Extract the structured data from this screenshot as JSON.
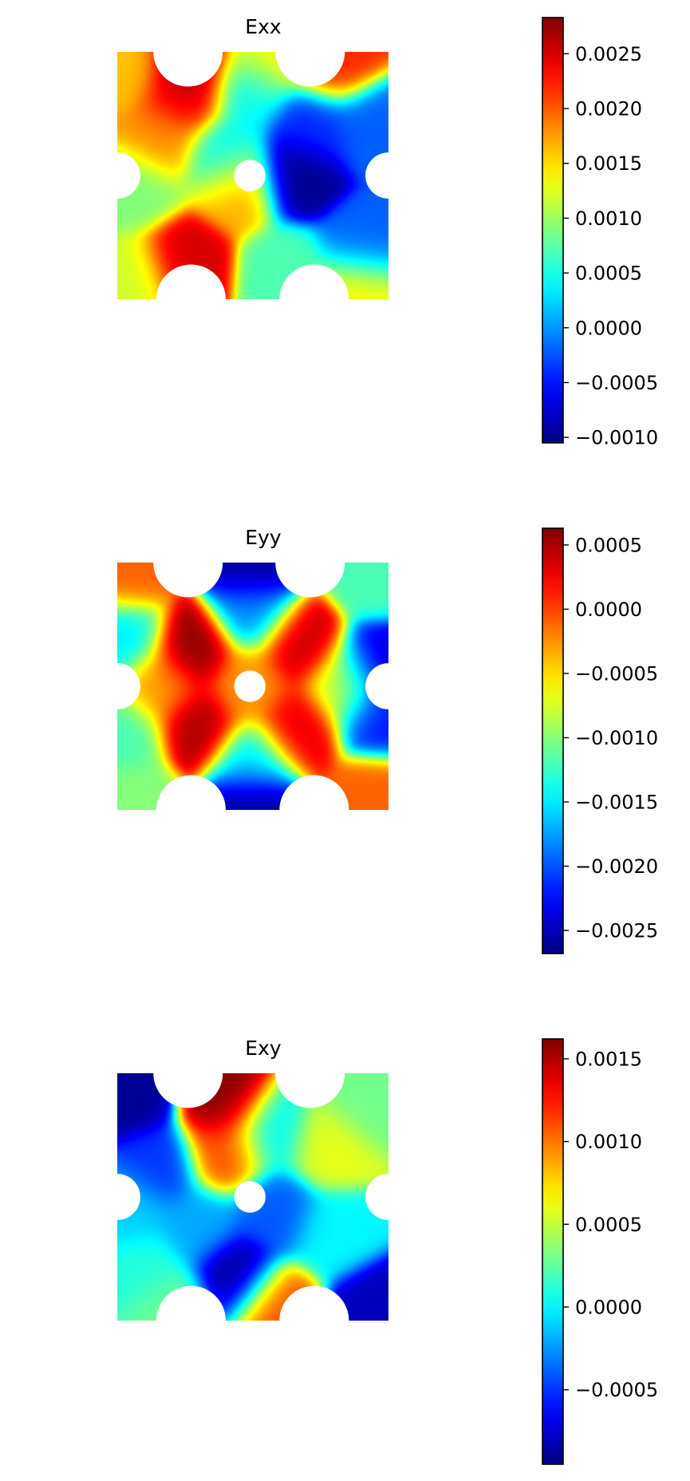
{
  "colormap": "jet",
  "chart_data": [
    {
      "type": "heatmap",
      "title": "Exx",
      "field": "Exx",
      "colorbar": {
        "range": [
          -0.00105,
          0.00283
        ],
        "ticks": [
          -0.001,
          -0.0005,
          0.0,
          0.0005,
          0.001,
          0.0015,
          0.002,
          0.0025
        ],
        "tick_labels": [
          "−0.0010",
          "−0.0005",
          "0.0000",
          "0.0005",
          "0.0010",
          "0.0015",
          "0.0020",
          "0.0025"
        ]
      },
      "features": [
        {
          "u": 0.28,
          "v": 0.06,
          "value": 0.0028
        },
        {
          "u": 0.24,
          "v": 0.18,
          "value": 0.0024
        },
        {
          "u": 0.16,
          "v": 0.35,
          "value": 0.0018
        },
        {
          "u": 0.45,
          "v": 0.55,
          "value": 0.0017
        },
        {
          "u": 0.25,
          "v": 0.85,
          "value": 0.0025
        },
        {
          "u": 0.06,
          "v": 0.92,
          "value": 0.0012
        },
        {
          "u": 0.02,
          "v": 0.08,
          "value": 0.0016
        },
        {
          "u": 0.07,
          "v": 0.55,
          "value": 0.0009
        },
        {
          "u": 0.4,
          "v": 0.42,
          "value": 0.0004
        },
        {
          "u": 0.48,
          "v": 0.15,
          "value": 0.0004
        },
        {
          "u": 0.66,
          "v": 0.5,
          "value": -0.001
        },
        {
          "u": 0.72,
          "v": 0.3,
          "value": -0.0004
        },
        {
          "u": 0.93,
          "v": 0.3,
          "value": -0.0002
        },
        {
          "u": 0.9,
          "v": 0.78,
          "value": -0.0002
        },
        {
          "u": 0.62,
          "v": 0.88,
          "value": 0.0007
        },
        {
          "u": 0.8,
          "v": 0.05,
          "value": 0.0022
        },
        {
          "u": 0.88,
          "v": 0.95,
          "value": 0.0014
        },
        {
          "u": 0.55,
          "v": 0.02,
          "value": 0.0014
        }
      ]
    },
    {
      "type": "heatmap",
      "title": "Eyy",
      "field": "Eyy",
      "colorbar": {
        "range": [
          -0.00268,
          0.00063
        ],
        "ticks": [
          -0.0025,
          -0.002,
          -0.0015,
          -0.001,
          -0.0005,
          0.0,
          0.0005
        ],
        "tick_labels": [
          "−0.0025",
          "−0.0020",
          "−0.0015",
          "−0.0010",
          "−0.0005",
          "0.0000",
          "0.0005"
        ]
      },
      "features": [
        {
          "u": 0.28,
          "v": 0.35,
          "value": 0.0006
        },
        {
          "u": 0.3,
          "v": 0.66,
          "value": 0.0005
        },
        {
          "u": 0.67,
          "v": 0.33,
          "value": 0.0004
        },
        {
          "u": 0.66,
          "v": 0.67,
          "value": 0.0003
        },
        {
          "u": 0.48,
          "v": 0.5,
          "value": -0.0003
        },
        {
          "u": 0.5,
          "v": 0.02,
          "value": -0.0026
        },
        {
          "u": 0.5,
          "v": 0.98,
          "value": -0.0026
        },
        {
          "u": 0.97,
          "v": 0.42,
          "value": -0.0024
        },
        {
          "u": 0.97,
          "v": 0.62,
          "value": -0.0022
        },
        {
          "u": 0.03,
          "v": 0.3,
          "value": -0.0015
        },
        {
          "u": 0.03,
          "v": 0.7,
          "value": -0.0012
        },
        {
          "u": 0.5,
          "v": 0.2,
          "value": -0.0018
        },
        {
          "u": 0.5,
          "v": 0.8,
          "value": -0.0015
        },
        {
          "u": 0.16,
          "v": 0.5,
          "value": -0.0003
        },
        {
          "u": 0.84,
          "v": 0.5,
          "value": -0.0008
        },
        {
          "u": 0.05,
          "v": 0.05,
          "value": -0.0001
        },
        {
          "u": 0.95,
          "v": 0.95,
          "value": -0.0001
        },
        {
          "u": 0.95,
          "v": 0.05,
          "value": -0.0012
        },
        {
          "u": 0.05,
          "v": 0.95,
          "value": -0.001
        }
      ]
    },
    {
      "type": "heatmap",
      "title": "Exy",
      "field": "Exy",
      "colorbar": {
        "range": [
          -0.00095,
          0.00162
        ],
        "ticks": [
          -0.0005,
          0.0,
          0.0005,
          0.001,
          0.0015
        ],
        "tick_labels": [
          "−0.0005",
          "0.0000",
          "0.0005",
          "0.0010",
          "0.0015"
        ]
      },
      "features": [
        {
          "u": 0.4,
          "v": 0.12,
          "value": 0.0016
        },
        {
          "u": 0.4,
          "v": 0.32,
          "value": 0.0011
        },
        {
          "u": 0.05,
          "v": 0.08,
          "value": -0.0009
        },
        {
          "u": 0.15,
          "v": 0.38,
          "value": -0.0005
        },
        {
          "u": 0.44,
          "v": 0.82,
          "value": -0.0009
        },
        {
          "u": 0.58,
          "v": 0.56,
          "value": -0.0004
        },
        {
          "u": 0.95,
          "v": 0.95,
          "value": -0.0008
        },
        {
          "u": 0.58,
          "v": 0.94,
          "value": 0.0011
        },
        {
          "u": 0.78,
          "v": 0.3,
          "value": 0.0006
        },
        {
          "u": 0.92,
          "v": 0.12,
          "value": 0.0003
        },
        {
          "u": 0.1,
          "v": 0.8,
          "value": 0.0001
        },
        {
          "u": 0.2,
          "v": 0.95,
          "value": 0.0003
        },
        {
          "u": 0.56,
          "v": 0.24,
          "value": 0.0
        },
        {
          "u": 0.8,
          "v": 0.65,
          "value": 0.0
        },
        {
          "u": 0.3,
          "v": 0.62,
          "value": -0.0002
        },
        {
          "u": 0.05,
          "v": 0.55,
          "value": -0.0001
        }
      ]
    }
  ]
}
